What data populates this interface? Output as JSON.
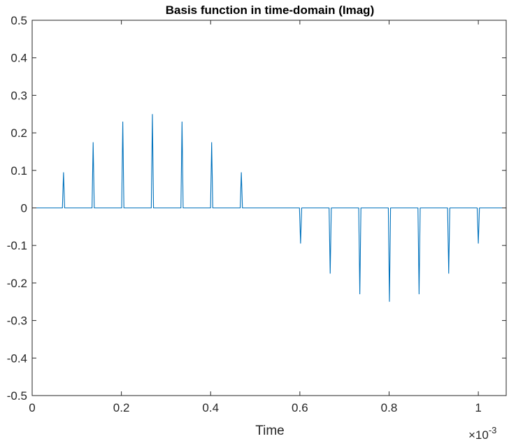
{
  "chart_data": {
    "type": "line",
    "title": "Basis function in time-domain (Imag)",
    "xlabel": "Time",
    "ylabel": "",
    "x_exponent_base": "×10",
    "x_exponent_power": "-3",
    "xlim": [
      0,
      1.0625
    ],
    "ylim": [
      -0.5,
      0.5
    ],
    "xticks": [
      0,
      0.2,
      0.4,
      0.6,
      0.8,
      1.0
    ],
    "xtick_labels": [
      "0",
      "0.2",
      "0.4",
      "0.6",
      "0.8",
      "1"
    ],
    "yticks": [
      -0.5,
      -0.4,
      -0.3,
      -0.2,
      -0.1,
      0,
      0.1,
      0.2,
      0.3,
      0.4,
      0.5
    ],
    "ytick_labels": [
      "-0.5",
      "-0.4",
      "-0.3",
      "-0.2",
      "-0.1",
      "0",
      "0.1",
      "0.2",
      "0.3",
      "0.4",
      "0.5"
    ],
    "grid": false,
    "series": [
      {
        "color": "#0072BD",
        "baseline": 0,
        "spike_half_width": 0.0025,
        "spikes": [
          {
            "x": 0.0703,
            "y": 0.095
          },
          {
            "x": 0.1367,
            "y": 0.175
          },
          {
            "x": 0.2031,
            "y": 0.23
          },
          {
            "x": 0.2695,
            "y": 0.25
          },
          {
            "x": 0.3359,
            "y": 0.23
          },
          {
            "x": 0.4023,
            "y": 0.175
          },
          {
            "x": 0.4688,
            "y": 0.095
          },
          {
            "x": 0.6016,
            "y": -0.095
          },
          {
            "x": 0.668,
            "y": -0.175
          },
          {
            "x": 0.7344,
            "y": -0.23
          },
          {
            "x": 0.8008,
            "y": -0.25
          },
          {
            "x": 0.8672,
            "y": -0.23
          },
          {
            "x": 0.9336,
            "y": -0.175
          },
          {
            "x": 1.0,
            "y": -0.095
          }
        ]
      }
    ]
  }
}
